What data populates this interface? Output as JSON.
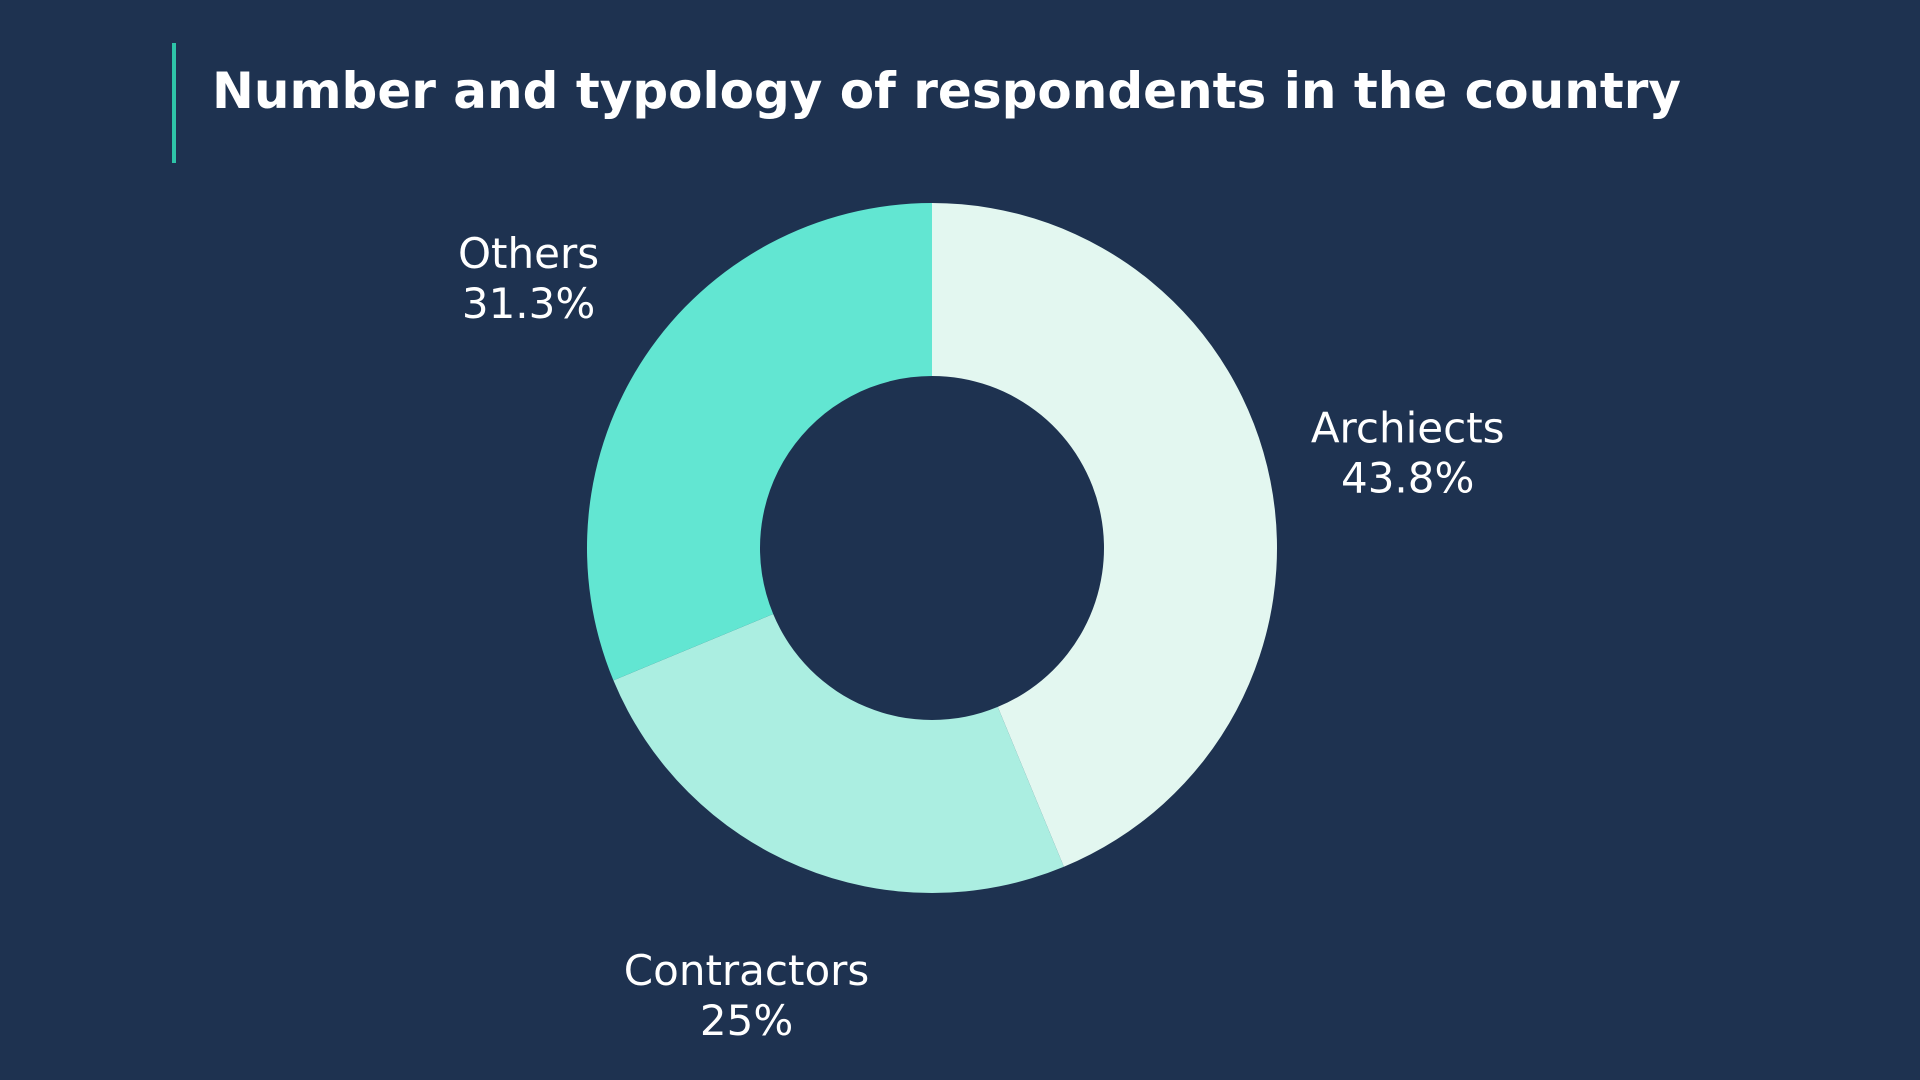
{
  "title": "Number and typology of respondents in the country",
  "colors": {
    "background": "#1e3250",
    "accent_bar": "#2ec4a8",
    "text": "#ffffff"
  },
  "chart_data": {
    "type": "pie",
    "style": "donut",
    "title": "Number and typology of respondents in the country",
    "slices": [
      {
        "label": "Archiects",
        "value": 43.8,
        "value_label": "43.8%",
        "color": "#e3f7f0"
      },
      {
        "label": "Contractors",
        "value": 25,
        "value_label": "25%",
        "color": "#abeee1"
      },
      {
        "label": "Others",
        "value": 31.3,
        "value_label": "31.3%",
        "color": "#62e6d2"
      }
    ]
  }
}
